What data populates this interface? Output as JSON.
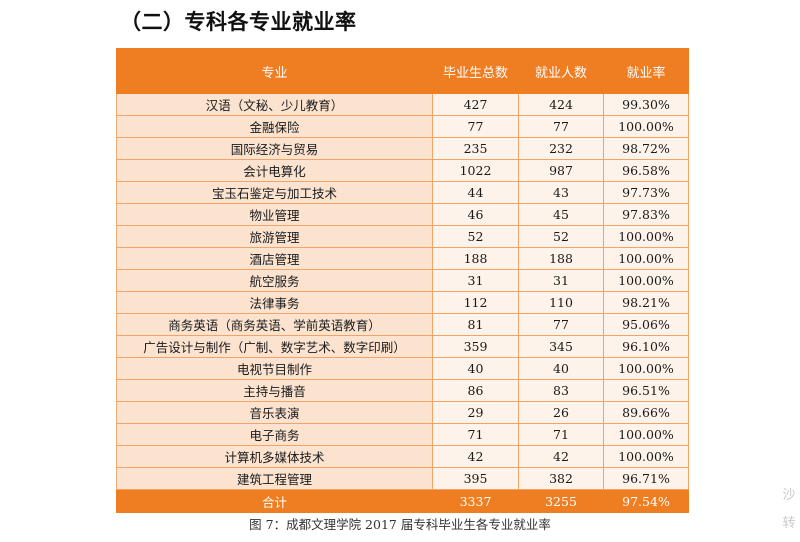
{
  "heading": "（二）专科各专业就业率",
  "table": {
    "headers": [
      "专业",
      "毕业生总数",
      "就业人数",
      "就业率"
    ],
    "rows": [
      {
        "major": "汉语（文秘、少儿教育）",
        "graduates": "427",
        "employed": "424",
        "rate": "99.30%"
      },
      {
        "major": "金融保险",
        "graduates": "77",
        "employed": "77",
        "rate": "100.00%"
      },
      {
        "major": "国际经济与贸易",
        "graduates": "235",
        "employed": "232",
        "rate": "98.72%"
      },
      {
        "major": "会计电算化",
        "graduates": "1022",
        "employed": "987",
        "rate": "96.58%"
      },
      {
        "major": "宝玉石鉴定与加工技术",
        "graduates": "44",
        "employed": "43",
        "rate": "97.73%"
      },
      {
        "major": "物业管理",
        "graduates": "46",
        "employed": "45",
        "rate": "97.83%"
      },
      {
        "major": "旅游管理",
        "graduates": "52",
        "employed": "52",
        "rate": "100.00%"
      },
      {
        "major": "酒店管理",
        "graduates": "188",
        "employed": "188",
        "rate": "100.00%"
      },
      {
        "major": "航空服务",
        "graduates": "31",
        "employed": "31",
        "rate": "100.00%"
      },
      {
        "major": "法律事务",
        "graduates": "112",
        "employed": "110",
        "rate": "98.21%"
      },
      {
        "major": "商务英语（商务英语、学前英语教育）",
        "graduates": "81",
        "employed": "77",
        "rate": "95.06%"
      },
      {
        "major": "广告设计与制作（广制、数字艺术、数字印刷）",
        "graduates": "359",
        "employed": "345",
        "rate": "96.10%"
      },
      {
        "major": "电视节目制作",
        "graduates": "40",
        "employed": "40",
        "rate": "100.00%"
      },
      {
        "major": "主持与播音",
        "graduates": "86",
        "employed": "83",
        "rate": "96.51%"
      },
      {
        "major": "音乐表演",
        "graduates": "29",
        "employed": "26",
        "rate": "89.66%"
      },
      {
        "major": "电子商务",
        "graduates": "71",
        "employed": "71",
        "rate": "100.00%"
      },
      {
        "major": "计算机多媒体技术",
        "graduates": "42",
        "employed": "42",
        "rate": "100.00%"
      },
      {
        "major": "建筑工程管理",
        "graduates": "395",
        "employed": "382",
        "rate": "96.71%"
      }
    ],
    "total": {
      "major": "合计",
      "graduates": "3337",
      "employed": "3255",
      "rate": "97.54%"
    }
  },
  "caption": "图 7：成都文理学院 2017 届专科毕业生各专业就业率",
  "side_mark": "沙 转",
  "colors": {
    "header_bg": "#ef7d22",
    "row_bg": "#fdf3ea",
    "first_col_bg": "#fbe3d0",
    "header_text": "#ffffff"
  }
}
